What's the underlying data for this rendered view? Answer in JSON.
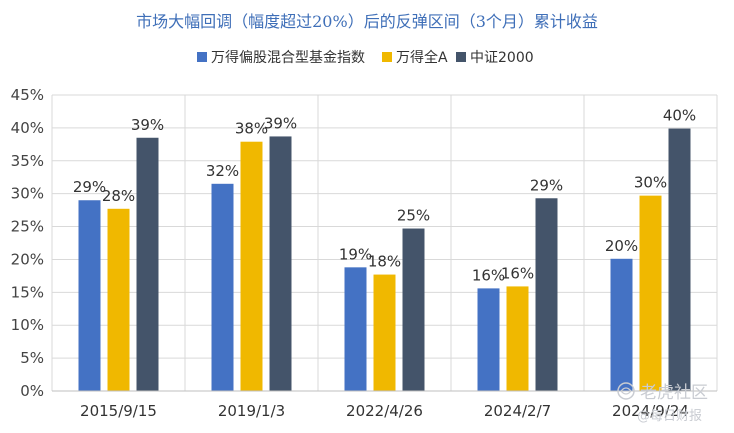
{
  "chart_data": {
    "type": "bar",
    "title": "市场大幅回调（幅度超过20%）后的反弹区间（3个月）累计收益",
    "categories": [
      "2015/9/15",
      "2019/1/3",
      "2022/4/26",
      "2024/2/7",
      "2024/9/24"
    ],
    "series": [
      {
        "name": "万得偏股混合型基金指数",
        "color": "#4472c4",
        "values": [
          29.0,
          31.5,
          18.8,
          15.6,
          20.1
        ],
        "labels": [
          "29%",
          "32%",
          "19%",
          "16%",
          "20%"
        ]
      },
      {
        "name": "万得全A",
        "color": "#f0b800",
        "values": [
          27.7,
          37.9,
          17.7,
          15.9,
          29.7
        ],
        "labels": [
          "28%",
          "38%",
          "18%",
          "16%",
          "30%"
        ]
      },
      {
        "name": "中证2000",
        "color": "#44546a",
        "values": [
          38.5,
          38.7,
          24.7,
          29.3,
          39.9
        ],
        "labels": [
          "39%",
          "39%",
          "25%",
          "29%",
          "40%"
        ]
      }
    ],
    "ylim": [
      0,
      45
    ],
    "yticks": [
      "0%",
      "5%",
      "10%",
      "15%",
      "20%",
      "25%",
      "30%",
      "35%",
      "40%",
      "45%"
    ],
    "grid": true,
    "legend": "top-center",
    "xlabel": "",
    "ylabel": ""
  },
  "watermark": {
    "main": "老虎社区",
    "sub": "@每日财报"
  }
}
